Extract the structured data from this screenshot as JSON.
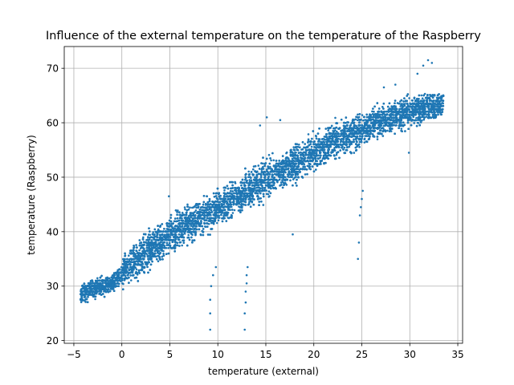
{
  "chart_data": {
    "type": "scatter",
    "title": "Influence of the external temperature on the temperature of the Raspberry",
    "xlabel": "temperature (external)",
    "ylabel": "temperature (Raspberry)",
    "xlim": [
      -6,
      35.5
    ],
    "ylim": [
      19.5,
      74
    ],
    "xticks": [
      -5,
      0,
      5,
      10,
      15,
      20,
      25,
      30,
      35
    ],
    "yticks": [
      20,
      30,
      40,
      50,
      60,
      70
    ],
    "grid": true,
    "marker_color": "#1f77b4",
    "trend": {
      "description_points": [
        [
          -4.3,
          28.5
        ],
        [
          -3,
          29.5
        ],
        [
          -1,
          30.5
        ],
        [
          0,
          32.5
        ],
        [
          2,
          35.5
        ],
        [
          4,
          38
        ],
        [
          6,
          40.5
        ],
        [
          8,
          42.5
        ],
        [
          10,
          44.5
        ],
        [
          12,
          46.5
        ],
        [
          14,
          48.5
        ],
        [
          16,
          50.5
        ],
        [
          18,
          52.5
        ],
        [
          20,
          54.5
        ],
        [
          22,
          56.5
        ],
        [
          24,
          58
        ],
        [
          26,
          59.5
        ],
        [
          28,
          61
        ],
        [
          30,
          62
        ],
        [
          32,
          63
        ],
        [
          33.5,
          63.5
        ]
      ]
    },
    "outliers": [
      [
        9.2,
        22
      ],
      [
        9.2,
        25
      ],
      [
        9.2,
        27.5
      ],
      [
        9.3,
        30
      ],
      [
        9.5,
        32
      ],
      [
        9.8,
        33.5
      ],
      [
        12.8,
        22
      ],
      [
        12.8,
        25
      ],
      [
        12.9,
        27
      ],
      [
        12.9,
        29
      ],
      [
        13,
        30.5
      ],
      [
        13,
        32
      ],
      [
        13.1,
        33.5
      ],
      [
        24.6,
        35
      ],
      [
        24.7,
        38
      ],
      [
        24.8,
        43
      ],
      [
        24.9,
        44.5
      ],
      [
        25,
        46
      ],
      [
        25.1,
        47.5
      ],
      [
        31.9,
        71.5
      ],
      [
        31.4,
        70.5
      ],
      [
        30.8,
        69
      ],
      [
        32.3,
        71
      ],
      [
        28.5,
        67
      ],
      [
        27.3,
        66.5
      ],
      [
        15.1,
        61
      ],
      [
        14.4,
        59.5
      ],
      [
        16.5,
        60.5
      ],
      [
        4.9,
        46.5
      ],
      [
        17.8,
        39.5
      ],
      [
        29.9,
        54.5
      ]
    ]
  }
}
